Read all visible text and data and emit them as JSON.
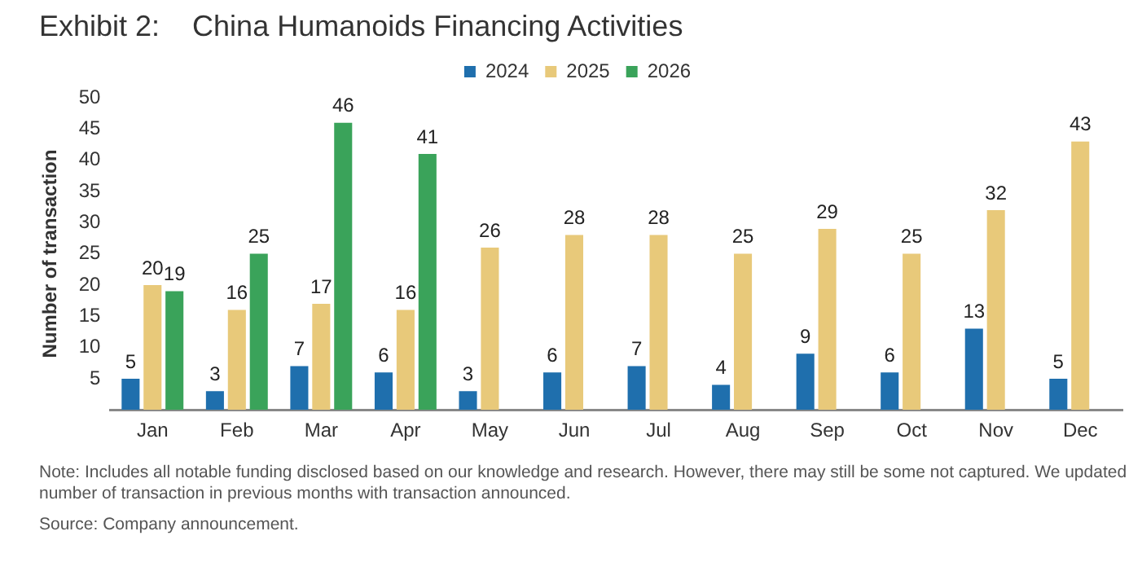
{
  "chart_data": {
    "type": "bar",
    "title": "Exhibit 2:    China Humanoids Financing Activities",
    "ylabel": "Number of transaction",
    "categories": [
      "Jan",
      "Feb",
      "Mar",
      "Apr",
      "May",
      "Jun",
      "Jul",
      "Aug",
      "Sep",
      "Oct",
      "Nov",
      "Dec"
    ],
    "series": [
      {
        "name": "2024",
        "color": "#1f6fad",
        "values": [
          5,
          3,
          7,
          6,
          3,
          6,
          7,
          4,
          9,
          6,
          13,
          5
        ]
      },
      {
        "name": "2025",
        "color": "#e8c97a",
        "values": [
          20,
          16,
          17,
          16,
          26,
          28,
          28,
          25,
          29,
          25,
          32,
          43
        ]
      },
      {
        "name": "2026",
        "color": "#3aa35a",
        "values": [
          19,
          25,
          46,
          41,
          null,
          null,
          null,
          null,
          null,
          null,
          null,
          null
        ]
      }
    ],
    "ylim": [
      0,
      50
    ],
    "yticks": [
      5,
      10,
      15,
      20,
      25,
      30,
      35,
      40,
      45,
      50
    ],
    "grid": false,
    "legend": "top",
    "data_labels": true,
    "annotations": [
      "Note: Includes all notable funding disclosed based on our knowledge and research. However, there may still be some not captured. We updated number of transaction in previous months with transaction announced.",
      "Source: Company announcement."
    ]
  }
}
